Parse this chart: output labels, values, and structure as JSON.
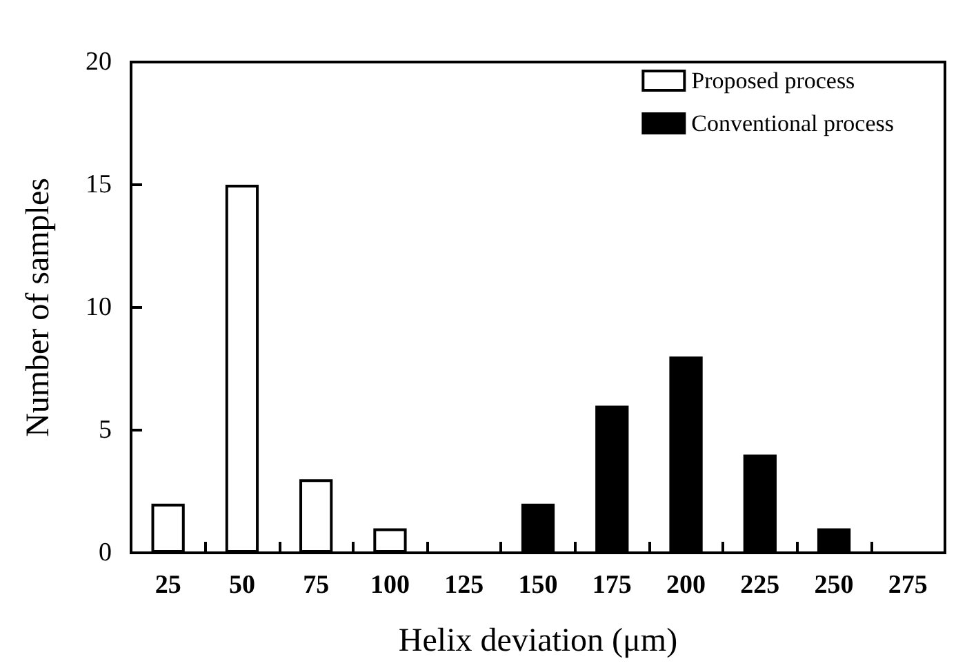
{
  "chart_data": {
    "type": "bar",
    "xlabel": "Helix deviation (μm)",
    "ylabel": "Number of samples",
    "categories": [
      "25",
      "50",
      "75",
      "100",
      "125",
      "150",
      "175",
      "200",
      "225",
      "250",
      "275"
    ],
    "series": [
      {
        "name": "Proposed process",
        "color": "#ffffff",
        "values": [
          2,
          15,
          3,
          1,
          null,
          null,
          null,
          null,
          null,
          null,
          null
        ]
      },
      {
        "name": "Conventional process",
        "color": "#000000",
        "values": [
          null,
          null,
          null,
          null,
          null,
          2,
          6,
          8,
          4,
          1,
          null
        ]
      }
    ],
    "ylim": [
      0,
      20
    ],
    "yticks": [
      0,
      5,
      10,
      15,
      20
    ],
    "grid": false,
    "legend": "top right"
  }
}
